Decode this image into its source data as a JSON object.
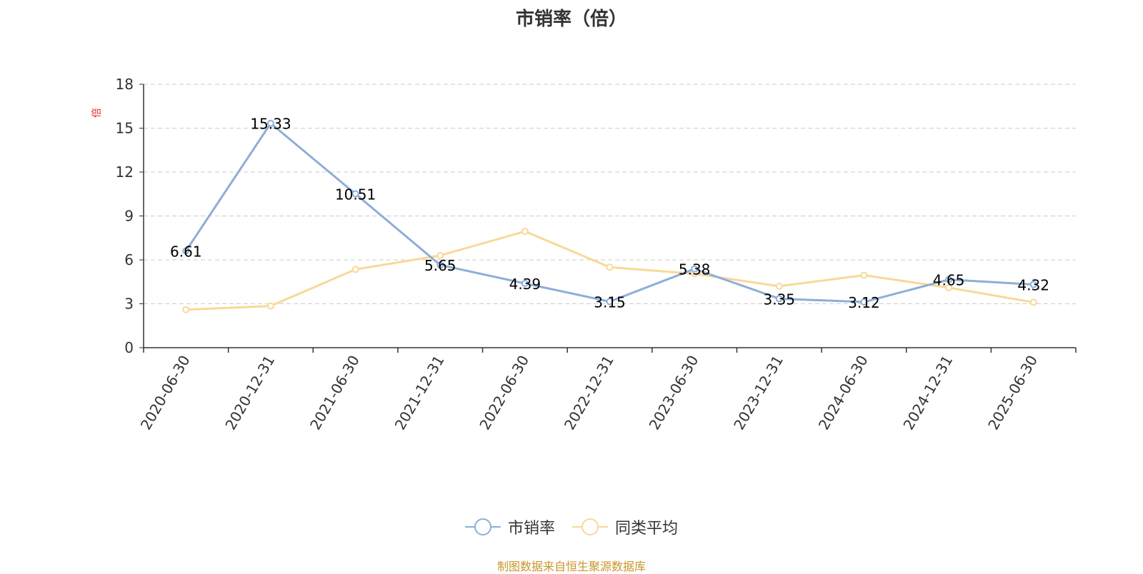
{
  "title": "市销率（倍）",
  "source": "制图数据来自恒生聚源数据库",
  "colors": {
    "series_1": "#8eaed8",
    "series_2": "#f9d898",
    "axis": "#333333",
    "grid": "#cccccc",
    "unit": "#e0262b"
  },
  "chart_data": {
    "type": "line",
    "title": "市销率（倍）",
    "ylabel": "倍",
    "ylim": [
      0,
      18
    ],
    "yticks": [
      "0",
      "3",
      "6",
      "9",
      "12",
      "15",
      "18"
    ],
    "grid": true,
    "legend_position": "bottom",
    "categories": [
      "2020-06-30",
      "2020-12-31",
      "2021-06-30",
      "2021-12-31",
      "2022-06-30",
      "2022-12-31",
      "2023-06-30",
      "2023-12-31",
      "2024-06-30",
      "2024-12-31",
      "2025-06-30"
    ],
    "series": [
      {
        "name": "市销率",
        "values": [
          6.61,
          15.33,
          10.51,
          5.65,
          4.39,
          3.15,
          5.38,
          3.35,
          3.12,
          4.65,
          4.32
        ],
        "labels": [
          "6.61",
          "15.33",
          "10.51",
          "5.65",
          "4.39",
          "3.15",
          "5.38",
          "3.35",
          "3.12",
          "4.65",
          "4.32"
        ]
      },
      {
        "name": "同类平均",
        "values": [
          2.6,
          2.85,
          5.35,
          6.3,
          7.95,
          5.5,
          5.05,
          4.2,
          4.95,
          4.1,
          3.1
        ]
      }
    ]
  }
}
